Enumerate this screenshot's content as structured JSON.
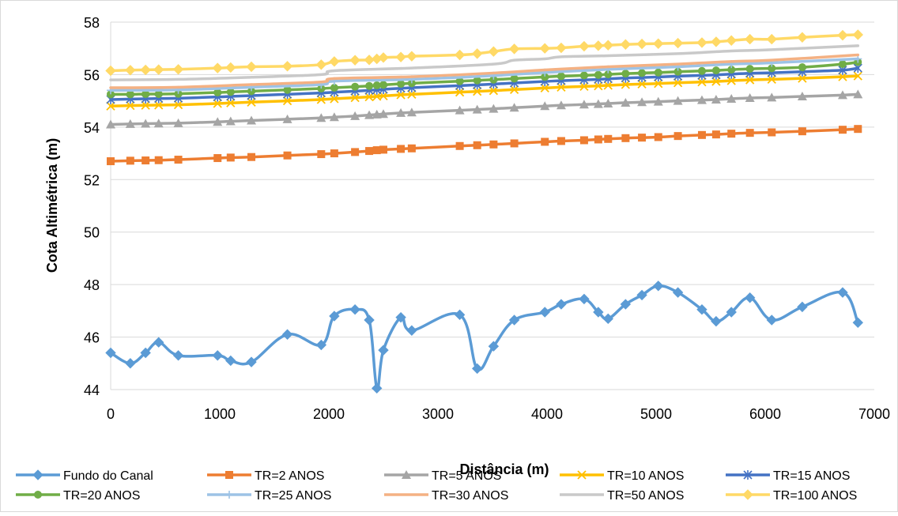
{
  "chart_data": {
    "type": "line",
    "title": "",
    "xlabel": "Distância (m)",
    "ylabel": "Cota Altimétrica (m)",
    "xlim": [
      0,
      7000
    ],
    "ylim": [
      44,
      58
    ],
    "xticks": [
      0,
      1000,
      2000,
      3000,
      4000,
      5000,
      6000,
      7000
    ],
    "yticks": [
      44,
      46,
      48,
      50,
      52,
      54,
      56,
      58
    ],
    "grid": "horizontal",
    "legend_position": "bottom",
    "series": [
      {
        "name": "Fundo do Canal",
        "color": "#5b9bd5",
        "marker": "diamond",
        "x": [
          0,
          180,
          320,
          440,
          620,
          980,
          1100,
          1290,
          1620,
          1930,
          2050,
          2240,
          2370,
          2440,
          2500,
          2660,
          2760,
          3200,
          3360,
          3510,
          3700,
          3980,
          4130,
          4340,
          4470,
          4560,
          4720,
          4870,
          5020,
          5200,
          5420,
          5550,
          5690,
          5860,
          6060,
          6340,
          6710,
          6850
        ],
        "values": [
          45.4,
          45.0,
          45.4,
          45.8,
          45.3,
          45.3,
          45.1,
          45.05,
          46.1,
          45.7,
          46.8,
          47.05,
          46.65,
          44.05,
          45.5,
          46.75,
          46.25,
          46.85,
          44.8,
          45.65,
          46.65,
          46.95,
          47.25,
          47.45,
          46.95,
          46.7,
          47.25,
          47.6,
          47.95,
          47.7,
          47.05,
          46.6,
          46.95,
          47.5,
          46.65,
          47.15,
          47.7,
          46.55
        ]
      },
      {
        "name": "TR=2 ANOS",
        "color": "#ed7d31",
        "marker": "square",
        "x": [
          0,
          180,
          320,
          440,
          620,
          980,
          1100,
          1290,
          1620,
          1930,
          2050,
          2240,
          2370,
          2440,
          2500,
          2660,
          2760,
          3200,
          3360,
          3510,
          3700,
          3980,
          4130,
          4340,
          4470,
          4560,
          4720,
          4870,
          5020,
          5200,
          5420,
          5550,
          5690,
          5860,
          6060,
          6340,
          6710,
          6850
        ],
        "values": [
          52.7,
          52.72,
          52.73,
          52.74,
          52.76,
          52.82,
          52.84,
          52.86,
          52.92,
          52.97,
          53.0,
          53.05,
          53.09,
          53.12,
          53.14,
          53.17,
          53.19,
          53.28,
          53.31,
          53.34,
          53.38,
          53.44,
          53.47,
          53.5,
          53.53,
          53.55,
          53.58,
          53.6,
          53.62,
          53.66,
          53.7,
          53.72,
          53.75,
          53.78,
          53.8,
          53.84,
          53.9,
          53.93
        ]
      },
      {
        "name": "TR=5 ANOS",
        "color": "#a5a5a5",
        "marker": "triangle",
        "x": [
          0,
          180,
          320,
          440,
          620,
          980,
          1100,
          1290,
          1620,
          1930,
          2050,
          2240,
          2370,
          2440,
          2500,
          2660,
          2760,
          3200,
          3360,
          3510,
          3700,
          3980,
          4130,
          4340,
          4470,
          4560,
          4720,
          4870,
          5020,
          5200,
          5420,
          5550,
          5690,
          5860,
          6060,
          6340,
          6710,
          6850
        ],
        "values": [
          54.1,
          54.12,
          54.13,
          54.14,
          54.15,
          54.2,
          54.22,
          54.25,
          54.3,
          54.35,
          54.38,
          54.42,
          54.46,
          54.48,
          54.5,
          54.54,
          54.56,
          54.64,
          54.67,
          54.7,
          54.74,
          54.8,
          54.83,
          54.86,
          54.88,
          54.9,
          54.93,
          54.95,
          54.97,
          55.0,
          55.03,
          55.05,
          55.08,
          55.11,
          55.13,
          55.17,
          55.22,
          55.25
        ]
      },
      {
        "name": "TR=10 ANOS",
        "color": "#ffc000",
        "marker": "x",
        "x": [
          0,
          180,
          320,
          440,
          620,
          980,
          1100,
          1290,
          1620,
          1930,
          2050,
          2240,
          2370,
          2440,
          2500,
          2660,
          2760,
          3200,
          3360,
          3510,
          3700,
          3980,
          4130,
          4340,
          4470,
          4560,
          4720,
          4870,
          5020,
          5200,
          5420,
          5550,
          5690,
          5860,
          6060,
          6340,
          6710,
          6850
        ],
        "values": [
          54.8,
          54.82,
          54.83,
          54.84,
          54.85,
          54.9,
          54.92,
          54.95,
          55.0,
          55.05,
          55.08,
          55.12,
          55.15,
          55.17,
          55.19,
          55.23,
          55.25,
          55.33,
          55.36,
          55.39,
          55.43,
          55.49,
          55.52,
          55.55,
          55.57,
          55.59,
          55.62,
          55.64,
          55.66,
          55.69,
          55.72,
          55.74,
          55.77,
          55.8,
          55.82,
          55.86,
          55.92,
          55.95
        ]
      },
      {
        "name": "TR=15 ANOS",
        "color": "#4472c4",
        "marker": "star",
        "x": [
          0,
          180,
          320,
          440,
          620,
          980,
          1100,
          1290,
          1620,
          1930,
          2050,
          2240,
          2370,
          2440,
          2500,
          2660,
          2760,
          3200,
          3360,
          3510,
          3700,
          3980,
          4130,
          4340,
          4470,
          4560,
          4720,
          4870,
          5020,
          5200,
          5420,
          5550,
          5690,
          5860,
          6060,
          6340,
          6710,
          6850
        ],
        "values": [
          55.05,
          55.07,
          55.08,
          55.09,
          55.1,
          55.15,
          55.17,
          55.2,
          55.25,
          55.3,
          55.33,
          55.37,
          55.4,
          55.42,
          55.44,
          55.48,
          55.5,
          55.58,
          55.61,
          55.64,
          55.68,
          55.74,
          55.77,
          55.8,
          55.82,
          55.84,
          55.87,
          55.89,
          55.91,
          55.94,
          55.97,
          55.99,
          56.02,
          56.05,
          56.07,
          56.11,
          56.17,
          56.25
        ]
      },
      {
        "name": "TR=20 ANOS",
        "color": "#70ad47",
        "marker": "circle",
        "x": [
          0,
          180,
          320,
          440,
          620,
          980,
          1100,
          1290,
          1620,
          1930,
          2050,
          2240,
          2370,
          2440,
          2500,
          2660,
          2760,
          3200,
          3360,
          3510,
          3700,
          3980,
          4130,
          4340,
          4470,
          4560,
          4720,
          4870,
          5020,
          5200,
          5420,
          5550,
          5690,
          5860,
          6060,
          6340,
          6710,
          6850
        ],
        "values": [
          55.25,
          55.25,
          55.26,
          55.26,
          55.27,
          55.32,
          55.34,
          55.37,
          55.42,
          55.47,
          55.5,
          55.54,
          55.57,
          55.59,
          55.61,
          55.65,
          55.67,
          55.75,
          55.78,
          55.81,
          55.85,
          55.91,
          55.94,
          55.97,
          55.99,
          56.01,
          56.04,
          56.06,
          56.08,
          56.11,
          56.14,
          56.16,
          56.19,
          56.22,
          56.24,
          56.28,
          56.4,
          56.48
        ]
      },
      {
        "name": "TR=25 ANOS",
        "color": "#9dc3e6",
        "marker": "plus",
        "x": [
          0,
          620,
          1290,
          1930,
          2050,
          2760,
          3510,
          3980,
          4560,
          5200,
          5690,
          6060,
          6850
        ],
        "values": [
          55.4,
          55.42,
          55.52,
          55.62,
          55.75,
          55.82,
          55.96,
          56.08,
          56.2,
          56.3,
          56.4,
          56.45,
          56.6
        ]
      },
      {
        "name": "TR=30 ANOS",
        "color": "#f4b183",
        "marker": "none",
        "x": [
          0,
          620,
          1290,
          1930,
          2050,
          2760,
          3510,
          3980,
          4560,
          5200,
          5690,
          6060,
          6850
        ],
        "values": [
          55.5,
          55.52,
          55.62,
          55.72,
          55.85,
          55.92,
          56.06,
          56.18,
          56.3,
          56.4,
          56.5,
          56.55,
          56.75
        ]
      },
      {
        "name": "TR=50 ANOS",
        "color": "#c9c9c9",
        "marker": "none",
        "x": [
          0,
          620,
          1290,
          1930,
          2050,
          2760,
          3510,
          3700,
          3980,
          4130,
          4560,
          5200,
          5690,
          6060,
          6850
        ],
        "values": [
          55.8,
          55.82,
          55.9,
          56.0,
          56.15,
          56.25,
          56.4,
          56.55,
          56.6,
          56.68,
          56.72,
          56.8,
          56.9,
          56.95,
          57.1
        ]
      },
      {
        "name": "TR=100 ANOS",
        "color": "#ffd966",
        "marker": "diamond",
        "x": [
          0,
          180,
          320,
          440,
          620,
          980,
          1100,
          1290,
          1620,
          1930,
          2050,
          2240,
          2370,
          2440,
          2500,
          2660,
          2760,
          3200,
          3360,
          3510,
          3700,
          3980,
          4130,
          4340,
          4470,
          4560,
          4720,
          4870,
          5020,
          5200,
          5420,
          5550,
          5690,
          5860,
          6060,
          6340,
          6710,
          6850
        ],
        "values": [
          56.15,
          56.17,
          56.18,
          56.19,
          56.2,
          56.25,
          56.27,
          56.3,
          56.32,
          56.38,
          56.5,
          56.55,
          56.56,
          56.6,
          56.65,
          56.67,
          56.7,
          56.75,
          56.8,
          56.88,
          56.98,
          57.0,
          57.02,
          57.08,
          57.1,
          57.12,
          57.15,
          57.17,
          57.18,
          57.2,
          57.22,
          57.25,
          57.3,
          57.35,
          57.35,
          57.42,
          57.5,
          57.52
        ]
      }
    ]
  }
}
